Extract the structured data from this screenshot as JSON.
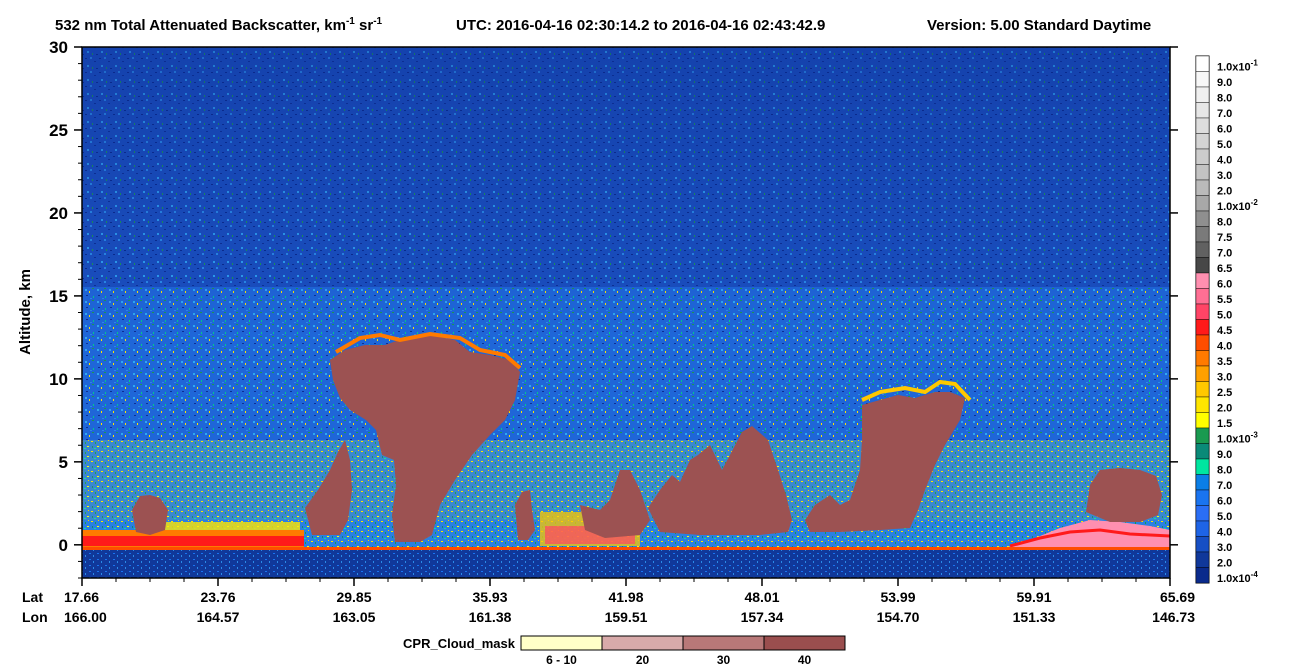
{
  "title": {
    "main": "532 nm Total Attenuated Backscatter, km",
    "unit_sup": "-1",
    "unit_mid": " sr",
    "time_range": "UTC:  2016-04-16 02:30:14.2  to  2016-04-16 02:43:42.9",
    "version": "Version: 5.00  Standard  Daytime"
  },
  "chart_data": {
    "type": "heatmap",
    "ylabel": "Altitude, km",
    "ylim": [
      -2,
      30
    ],
    "yticks": [
      0,
      5,
      10,
      15,
      20,
      25,
      30
    ],
    "x_row_labels": [
      "Lat",
      "Lon"
    ],
    "x_ticks": [
      {
        "lat": "17.66",
        "lon": "166.00"
      },
      {
        "lat": "23.76",
        "lon": "164.57"
      },
      {
        "lat": "29.85",
        "lon": "163.05"
      },
      {
        "lat": "35.93",
        "lon": "161.38"
      },
      {
        "lat": "41.98",
        "lon": "159.51"
      },
      {
        "lat": "48.01",
        "lon": "157.34"
      },
      {
        "lat": "53.99",
        "lon": "154.70"
      },
      {
        "lat": "59.91",
        "lon": "151.33"
      },
      {
        "lat": "65.69",
        "lon": "146.73"
      }
    ],
    "colorbar": {
      "labels": [
        "1.0x10",
        "9.0",
        "8.0",
        "7.0",
        "6.0",
        "5.0",
        "4.0",
        "3.0",
        "2.0",
        "1.0x10",
        "8.0",
        "7.5",
        "7.0",
        "6.5",
        "6.0",
        "5.5",
        "5.0",
        "4.5",
        "4.0",
        "3.5",
        "3.0",
        "2.5",
        "2.0",
        "1.5",
        "1.0x10",
        "9.0",
        "8.0",
        "7.0",
        "6.0",
        "5.0",
        "4.0",
        "3.0",
        "2.0",
        "1.0x10"
      ],
      "exponents": [
        "-1",
        "",
        "",
        "",
        "",
        "",
        "",
        "",
        "",
        "-2",
        "",
        "",
        "",
        "",
        "",
        "",
        "",
        "",
        "",
        "",
        "",
        "",
        "",
        "",
        "-3",
        "",
        "",
        "",
        "",
        "",
        "",
        "",
        "",
        "-4"
      ],
      "colors": [
        "#ffffff",
        "#f7f7f7",
        "#efefef",
        "#e6e6e6",
        "#dddddd",
        "#d4d4d4",
        "#cccccc",
        "#c3c3c3",
        "#bababa",
        "#a8a8a8",
        "#8f8f8f",
        "#7a7a7a",
        "#616161",
        "#474747",
        "#ff8fb0",
        "#ff6f94",
        "#ff4466",
        "#ff1a1a",
        "#ff4d00",
        "#ff7a00",
        "#ffa000",
        "#ffc800",
        "#ffe600",
        "#ffff00",
        "#1a9a50",
        "#0a8a78",
        "#00e6a0",
        "#0a7ee6",
        "#1a74f0",
        "#2a6ef5",
        "#1e64e6",
        "#174fc4",
        "#10389a",
        "#0a2a8c"
      ]
    },
    "cpr_cloud_mask": {
      "label": "CPR_Cloud_mask",
      "categories": [
        "6 - 10",
        "20",
        "30",
        "40"
      ],
      "colors": [
        "#ffffc8",
        "#d8aaaa",
        "#b87878",
        "#9a4e4e"
      ]
    },
    "cloud_color": "#9c5252",
    "background_color": "#1a4fc4"
  }
}
